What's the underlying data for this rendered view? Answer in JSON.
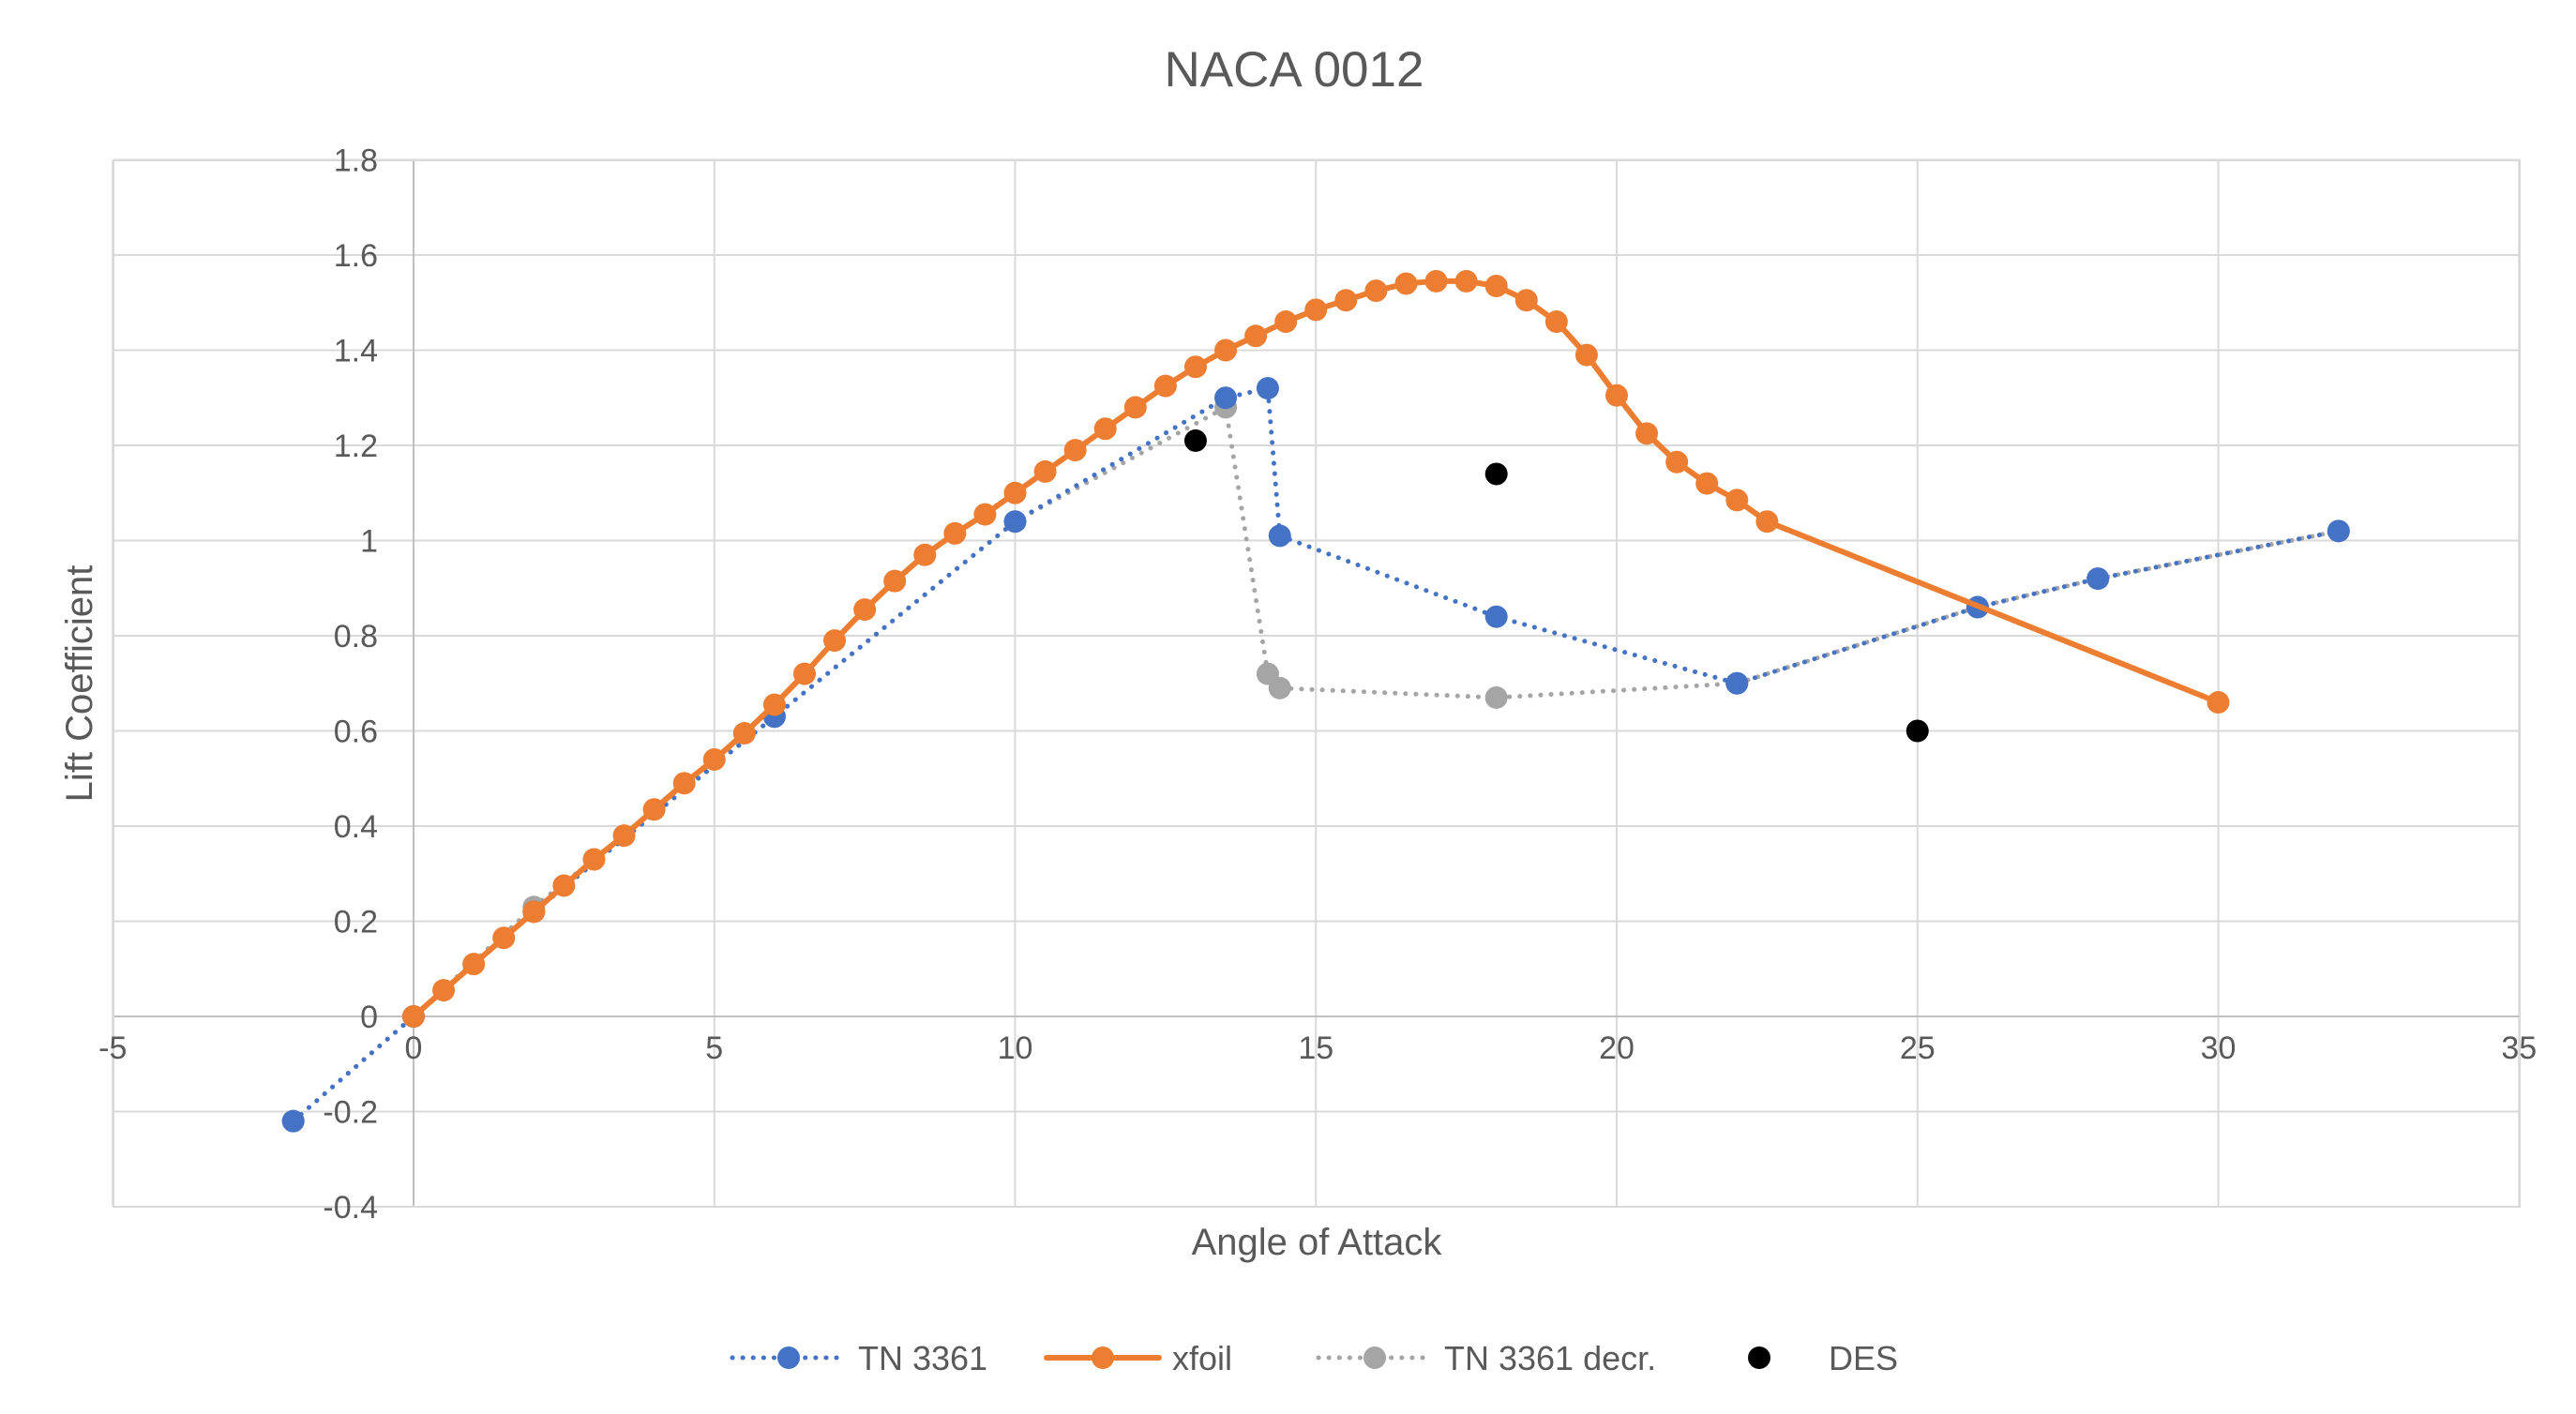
{
  "chart_data": {
    "type": "scatter",
    "title": "NACA 0012",
    "xlabel": "Angle of Attack",
    "ylabel": "Lift Coefficient",
    "xlim": [
      -5,
      35
    ],
    "ylim": [
      -0.4,
      1.8
    ],
    "xticks": [
      -5,
      0,
      5,
      10,
      15,
      20,
      25,
      30,
      35
    ],
    "yticks": [
      -0.4,
      -0.2,
      0,
      0.2,
      0.4,
      0.6,
      0.8,
      1,
      1.2,
      1.4,
      1.6,
      1.8
    ],
    "xtick_labels": [
      "-5",
      "0",
      "5",
      "10",
      "15",
      "20",
      "25",
      "30",
      "35"
    ],
    "ytick_labels": [
      "-0.4",
      "-0.2",
      "0",
      "0.2",
      "0.4",
      "0.6",
      "0.8",
      "1",
      "1.2",
      "1.4",
      "1.6",
      "1.8"
    ],
    "grid": true,
    "legend_position": "bottom",
    "series": [
      {
        "name": "TN 3361",
        "style": "dotted-line-markers",
        "color": "#4472C4",
        "points": [
          [
            -2,
            -0.22
          ],
          [
            0,
            0
          ],
          [
            2,
            0.22
          ],
          [
            6,
            0.63
          ],
          [
            10,
            1.04
          ],
          [
            13.5,
            1.3
          ],
          [
            14.2,
            1.32
          ],
          [
            14.4,
            1.01
          ],
          [
            18,
            0.84
          ],
          [
            22,
            0.7
          ],
          [
            26,
            0.86
          ],
          [
            28,
            0.92
          ],
          [
            32,
            1.02
          ]
        ]
      },
      {
        "name": "xfoil",
        "style": "solid-line-markers",
        "color": "#ED7D31",
        "points": [
          [
            0,
            0
          ],
          [
            0.5,
            0.055
          ],
          [
            1,
            0.11
          ],
          [
            1.5,
            0.165
          ],
          [
            2,
            0.22
          ],
          [
            2.5,
            0.275
          ],
          [
            3,
            0.33
          ],
          [
            3.5,
            0.38
          ],
          [
            4,
            0.435
          ],
          [
            4.5,
            0.49
          ],
          [
            5,
            0.54
          ],
          [
            5.5,
            0.595
          ],
          [
            6,
            0.655
          ],
          [
            6.5,
            0.72
          ],
          [
            7,
            0.79
          ],
          [
            7.5,
            0.855
          ],
          [
            8,
            0.915
          ],
          [
            8.5,
            0.97
          ],
          [
            9,
            1.015
          ],
          [
            9.5,
            1.055
          ],
          [
            10,
            1.1
          ],
          [
            10.5,
            1.145
          ],
          [
            11,
            1.19
          ],
          [
            11.5,
            1.235
          ],
          [
            12,
            1.28
          ],
          [
            12.5,
            1.325
          ],
          [
            13,
            1.365
          ],
          [
            13.5,
            1.4
          ],
          [
            14,
            1.43
          ],
          [
            14.5,
            1.46
          ],
          [
            15,
            1.485
          ],
          [
            15.5,
            1.505
          ],
          [
            16,
            1.525
          ],
          [
            16.5,
            1.54
          ],
          [
            17,
            1.545
          ],
          [
            17.5,
            1.545
          ],
          [
            18,
            1.535
          ],
          [
            18.5,
            1.505
          ],
          [
            19,
            1.46
          ],
          [
            19.5,
            1.39
          ],
          [
            20,
            1.305
          ],
          [
            20.5,
            1.225
          ],
          [
            21,
            1.165
          ],
          [
            21.5,
            1.12
          ],
          [
            22,
            1.085
          ],
          [
            22.5,
            1.04
          ],
          [
            30,
            0.66
          ]
        ]
      },
      {
        "name": "TN 3361 decr.",
        "style": "dotted-line-markers",
        "color": "#A5A5A5",
        "points": [
          [
            -2,
            -0.22
          ],
          [
            0,
            0
          ],
          [
            2,
            0.23
          ],
          [
            6,
            0.63
          ],
          [
            10,
            1.04
          ],
          [
            13.5,
            1.28
          ],
          [
            14.2,
            0.72
          ],
          [
            14.4,
            0.69
          ],
          [
            18,
            0.67
          ],
          [
            22,
            0.7
          ],
          [
            26,
            0.86
          ],
          [
            28,
            0.92
          ],
          [
            32,
            1.02
          ]
        ]
      },
      {
        "name": "DES",
        "style": "markers-only",
        "color": "#000000",
        "points": [
          [
            13,
            1.21
          ],
          [
            18,
            1.14
          ],
          [
            25,
            0.6
          ]
        ]
      }
    ]
  }
}
